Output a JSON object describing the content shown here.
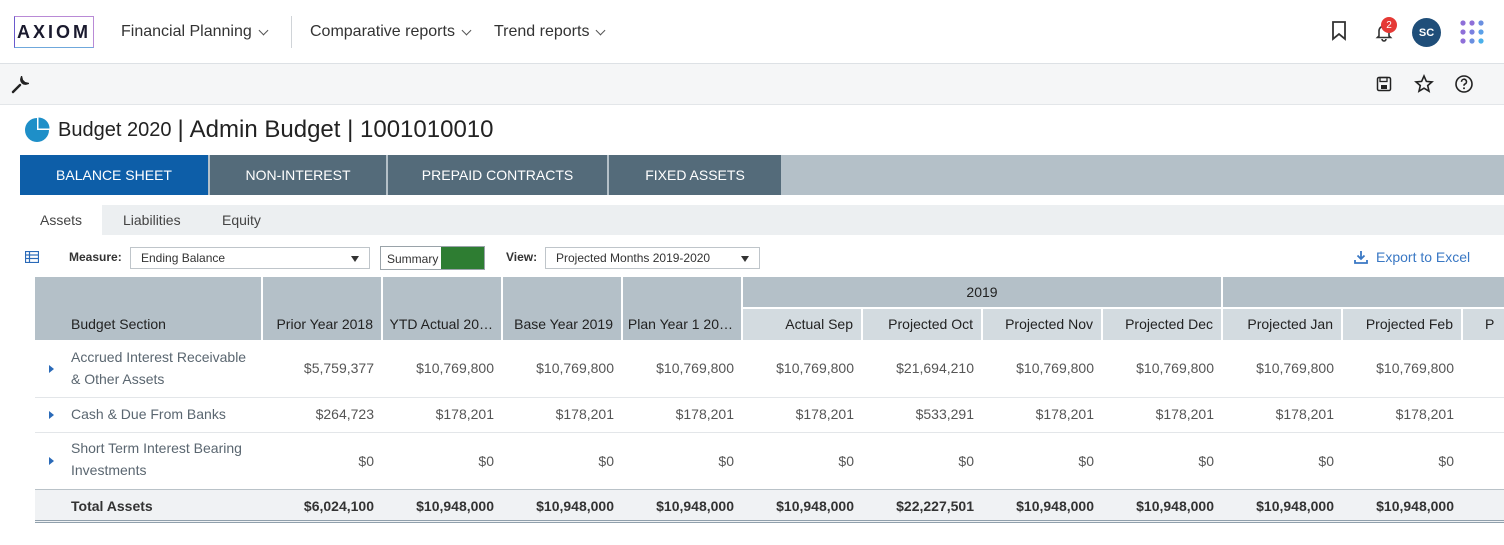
{
  "logo": "AXIOM",
  "nav": [
    {
      "label": "Financial Planning"
    },
    {
      "label": "Comparative reports"
    },
    {
      "label": "Trend reports"
    }
  ],
  "notifications": {
    "count": "2"
  },
  "user": {
    "initials": "SC"
  },
  "title": {
    "plan": "Budget 2020",
    "detail": "Admin Budget | 1001010010"
  },
  "tabs": [
    "BALANCE SHEET",
    "NON-INTEREST",
    "PREPAID CONTRACTS",
    "FIXED ASSETS"
  ],
  "subtabs": [
    "Assets",
    "Liabilities",
    "Equity"
  ],
  "controls": {
    "measure_label": "Measure:",
    "measure_value": "Ending Balance",
    "summary_label": "Summary",
    "view_label": "View:",
    "view_value": "Projected Months 2019-2020",
    "export_label": "Export to Excel"
  },
  "grid": {
    "year_group": "2019",
    "section_header": "Budget Section",
    "columns": [
      "Prior Year 2018",
      "YTD Actual 20…",
      "Base Year 2019",
      "Plan Year 1 20…",
      "Actual Sep",
      "Projected Oct",
      "Projected Nov",
      "Projected Dec",
      "Projected Jan",
      "Projected Feb",
      "P"
    ],
    "rows": [
      {
        "section": [
          "Accrued Interest Receivable",
          "& Other Assets"
        ],
        "values": [
          "$5,759,377",
          "$10,769,800",
          "$10,769,800",
          "$10,769,800",
          "$10,769,800",
          "$21,694,210",
          "$10,769,800",
          "$10,769,800",
          "$10,769,800",
          "$10,769,800"
        ]
      },
      {
        "section": [
          "Cash & Due From Banks"
        ],
        "values": [
          "$264,723",
          "$178,201",
          "$178,201",
          "$178,201",
          "$178,201",
          "$533,291",
          "$178,201",
          "$178,201",
          "$178,201",
          "$178,201"
        ]
      },
      {
        "section": [
          "Short Term Interest Bearing",
          "Investments"
        ],
        "values": [
          "$0",
          "$0",
          "$0",
          "$0",
          "$0",
          "$0",
          "$0",
          "$0",
          "$0",
          "$0"
        ]
      }
    ],
    "total": {
      "label": "Total Assets",
      "values": [
        "$6,024,100",
        "$10,948,000",
        "$10,948,000",
        "$10,948,000",
        "$10,948,000",
        "$22,227,501",
        "$10,948,000",
        "$10,948,000",
        "$10,948,000",
        "$10,948,000"
      ]
    }
  }
}
